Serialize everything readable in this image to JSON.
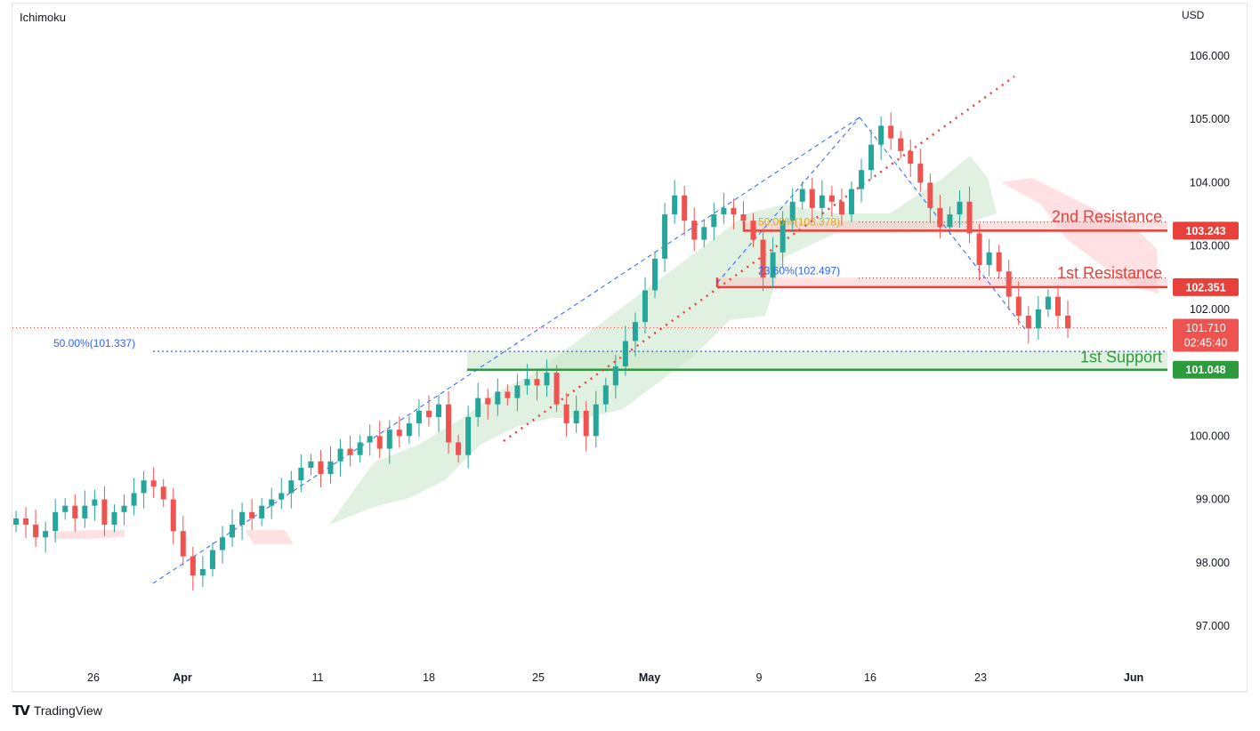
{
  "header": {
    "indicator": "Ichimoku",
    "currency": "USD"
  },
  "brand": {
    "logo": "TV",
    "name": "TradingView"
  },
  "colors": {
    "up": "#26a69a",
    "down": "#ef5350",
    "resistance": "#e8403a",
    "support": "#2e9a3e",
    "fib": "#2962ff",
    "trend": "#e8403a",
    "cloud_up": "#c8e6c9",
    "cloud_down": "#ffcdd2"
  },
  "chart_data": {
    "type": "candlestick",
    "title": "Ichimoku",
    "currency": "USD",
    "ylim": [
      96.4,
      106.9
    ],
    "y_ticks": [
      "106.000",
      "105.000",
      "104.000",
      "103.000",
      "102.000",
      "100.000",
      "99.000",
      "98.000",
      "97.000"
    ],
    "x_ticks": [
      {
        "label": "26",
        "bold": false
      },
      {
        "label": "Apr",
        "bold": true
      },
      {
        "label": "11",
        "bold": false
      },
      {
        "label": "18",
        "bold": false
      },
      {
        "label": "25",
        "bold": false
      },
      {
        "label": "May",
        "bold": true
      },
      {
        "label": "9",
        "bold": false
      },
      {
        "label": "16",
        "bold": false
      },
      {
        "label": "23",
        "bold": false
      },
      {
        "label": "Jun",
        "bold": true
      }
    ],
    "levels": [
      {
        "name": "2nd Resistance",
        "price": "103.243",
        "value": 103.243,
        "kind": "resistance"
      },
      {
        "name": "1st Resistance",
        "price": "102.351",
        "value": 102.351,
        "kind": "resistance"
      },
      {
        "name": "1st Support",
        "price": "101.048",
        "value": 101.048,
        "kind": "support"
      }
    ],
    "fib_labels": [
      {
        "text": "50.00%(101.337)",
        "value": 101.337
      },
      {
        "text": "23.60%(102.497)",
        "value": 102.497
      },
      {
        "text": "50.00%(103.378)",
        "value": 103.378
      }
    ],
    "last_price": {
      "price": "101.710",
      "countdown": "02:45:40",
      "value": 101.71
    },
    "closes": [
      98.7,
      98.6,
      98.4,
      98.5,
      98.8,
      98.9,
      98.7,
      98.9,
      99.0,
      98.6,
      98.8,
      98.9,
      99.1,
      99.3,
      99.2,
      99.0,
      98.5,
      98.1,
      97.8,
      97.9,
      98.2,
      98.4,
      98.6,
      98.8,
      98.7,
      98.9,
      99.0,
      99.1,
      99.3,
      99.5,
      99.6,
      99.4,
      99.6,
      99.8,
      99.7,
      99.9,
      100.0,
      99.8,
      100.1,
      100.0,
      100.2,
      100.4,
      100.3,
      100.5,
      99.9,
      99.7,
      100.3,
      100.6,
      100.5,
      100.7,
      100.6,
      100.8,
      100.9,
      100.8,
      101.0,
      100.5,
      100.2,
      100.4,
      100.0,
      100.5,
      100.8,
      101.1,
      101.5,
      101.8,
      102.3,
      102.8,
      103.5,
      103.8,
      103.4,
      103.1,
      103.3,
      103.5,
      103.6,
      103.5,
      103.4,
      103.1,
      102.5,
      102.9,
      103.4,
      103.7,
      103.9,
      103.6,
      103.8,
      103.7,
      103.5,
      103.9,
      104.2,
      104.6,
      104.9,
      104.7,
      104.5,
      104.3,
      104.0,
      103.6,
      103.3,
      103.5,
      103.7,
      103.2,
      102.7,
      102.9,
      102.6,
      102.2,
      101.9,
      101.7,
      102.0,
      102.2,
      101.9,
      101.7
    ]
  }
}
